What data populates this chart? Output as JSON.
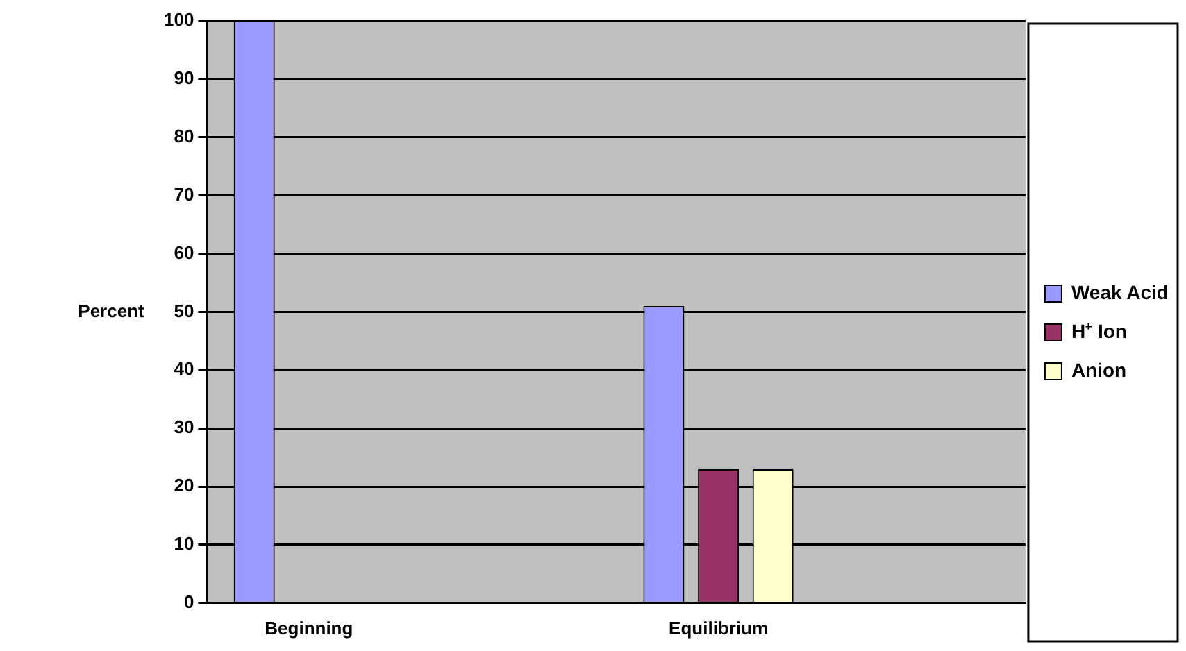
{
  "chart_data": {
    "type": "bar",
    "ylabel": "Percent",
    "categories": [
      "Beginning",
      null,
      "Equilibrium",
      null
    ],
    "series": [
      {
        "name": "Weak Acid",
        "color": "#9999ff",
        "values": [
          100,
          null,
          51,
          null
        ]
      },
      {
        "name": "H⁺ Ion",
        "color": "#993366",
        "values": [
          0,
          null,
          23,
          null
        ]
      },
      {
        "name": "Anion",
        "color": "#ffffcc",
        "values": [
          0,
          null,
          23,
          null
        ]
      }
    ],
    "ylim": [
      0,
      100
    ],
    "yticks": [
      0,
      10,
      20,
      30,
      40,
      50,
      60,
      70,
      80,
      90,
      100
    ],
    "grid": "y",
    "legend": "right"
  }
}
